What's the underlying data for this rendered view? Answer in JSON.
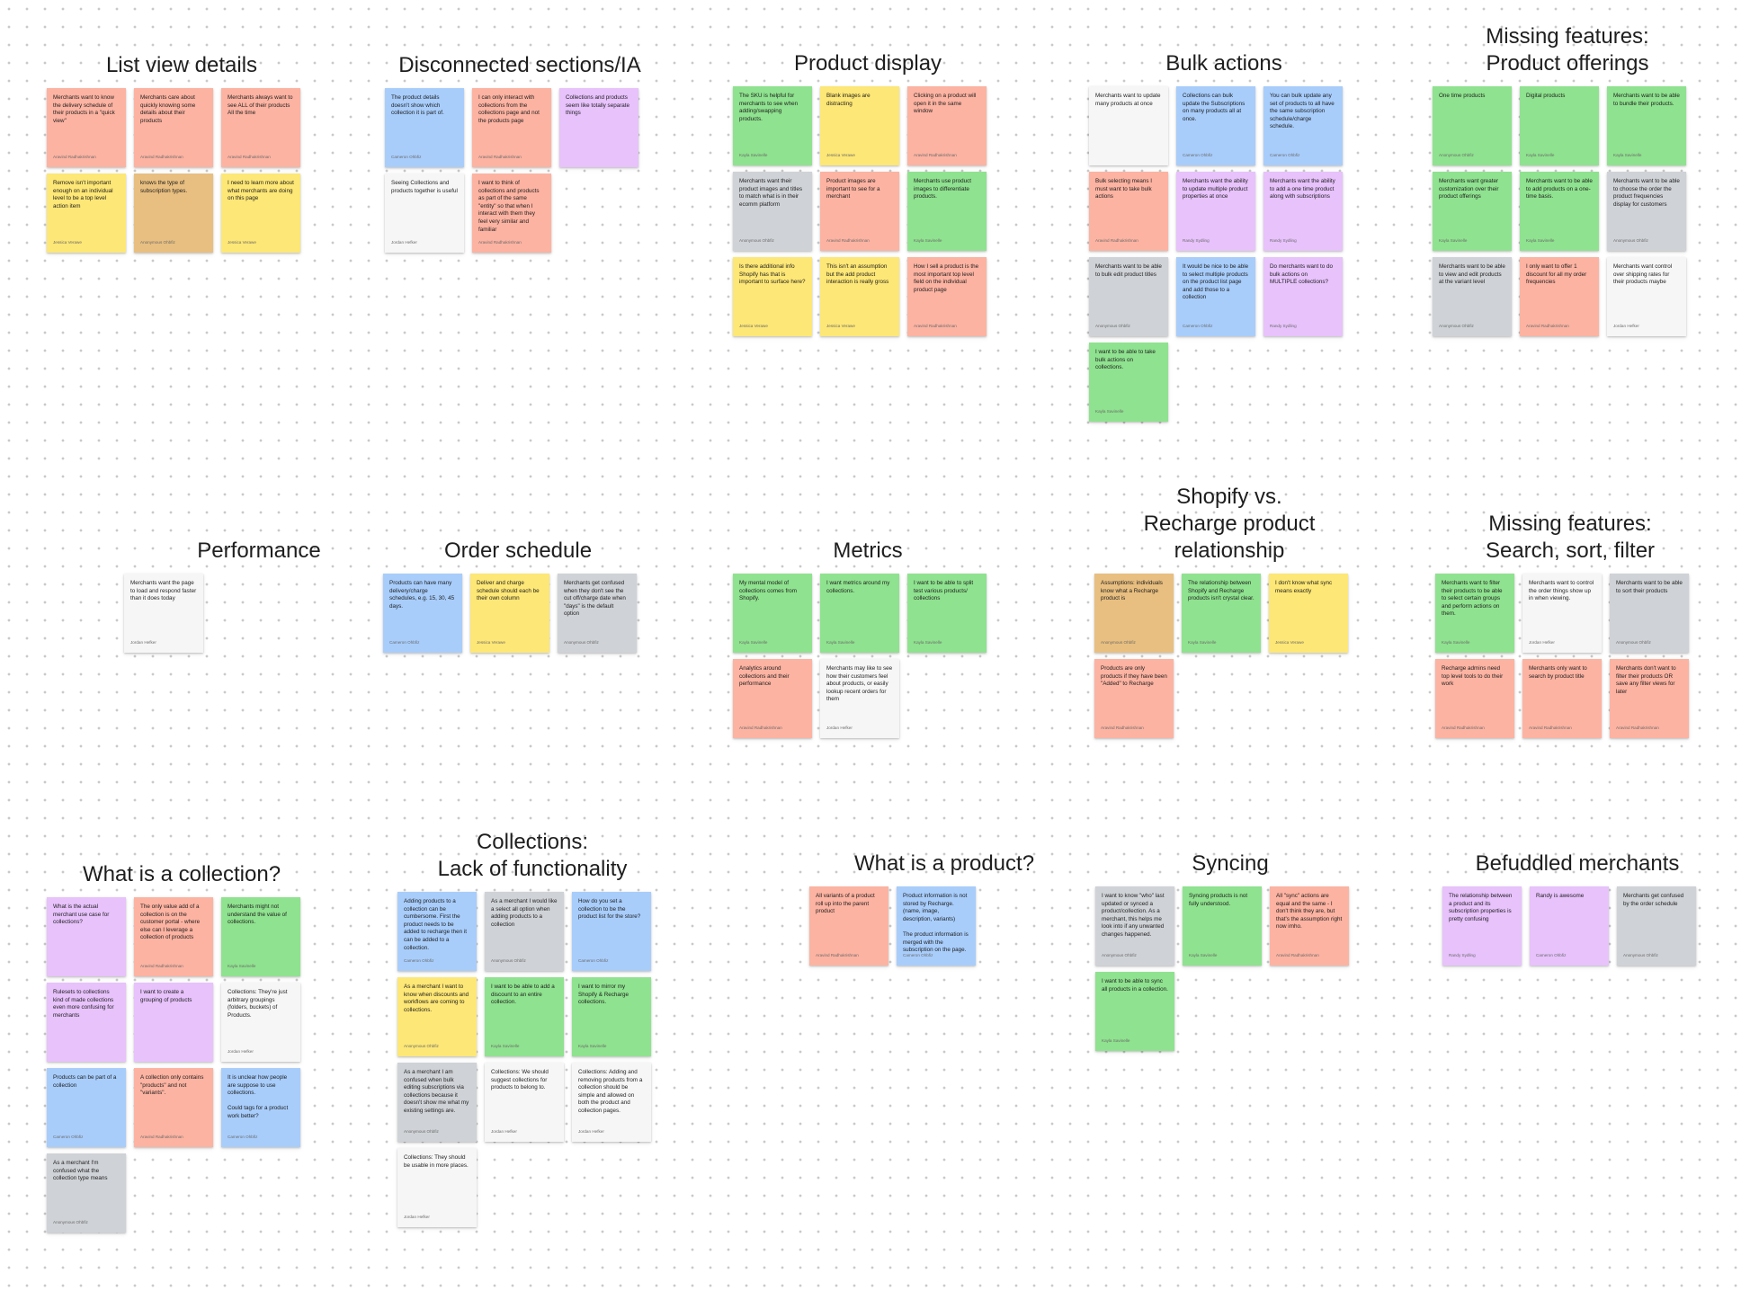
{
  "board": {
    "colors": {
      "red": "#fcb3a2",
      "yellow": "#fde776",
      "blue": "#a8cdfb",
      "green": "#8fe28f",
      "purple": "#e7c2fb",
      "gray": "#cfd2d6",
      "white": "#f6f6f6",
      "tan": "#e8bf80"
    },
    "clusters": [
      {
        "title": "List view details",
        "notes": [
          {
            "text": "Merchants want to know the delivery schedule of their products in a \"quick view\"",
            "author": "Aravind Radhakrishnan",
            "color": "red"
          },
          {
            "text": "Merchants care about quickly knowing some details about their products",
            "author": "Aravind Radhakrishnan",
            "color": "red"
          },
          {
            "text": "Merchants always want to see ALL of their products All the time",
            "author": "Aravind Radhakrishnan",
            "color": "red"
          },
          {
            "text": "Remove isn't important enough on an individual level to be a top level action item",
            "author": "Jessica Verawe",
            "color": "yellow"
          },
          {
            "text": "knows the type of subscription types.",
            "author": "Anonymous Ohbfiz",
            "color": "tan"
          },
          {
            "text": "I need to learn more about what merchants are doing on this page",
            "author": "Jessica Verawe",
            "color": "yellow"
          }
        ]
      },
      {
        "title": "Disconnected sections/IA",
        "notes": [
          {
            "text": "The product details doesn't show which collection it is part of.",
            "author": "Cameron Ohbfiz",
            "color": "blue"
          },
          {
            "text": "I can only interact with collections from the collections page and not the products page",
            "author": "Aravind Radhakrishnan",
            "color": "red"
          },
          {
            "text": "Collections and products seem like totally separate things",
            "author": "",
            "color": "purple"
          },
          {
            "text": "Seeing Collections and products together is useful",
            "author": "Jordan Hefker",
            "color": "white"
          },
          {
            "text": "I want to think of collections and products as part of the same \"entity\" so that when I interact with them they feel very similar and familiar",
            "author": "Aravind Radhakrishnan",
            "color": "red"
          }
        ]
      },
      {
        "title": "Product display",
        "notes": [
          {
            "text": "The SKU is helpful for merchants to see when adding/swapping products.",
            "author": "Kayla Savinelle",
            "color": "green"
          },
          {
            "text": "Blank images are distracting",
            "author": "Jessica Verawe",
            "color": "yellow"
          },
          {
            "text": "Clicking on a product will open it in the same window",
            "author": "Aravind Radhakrishnan",
            "color": "red"
          },
          {
            "text": "Merchants want their product images and titles to match what is in their ecomm platform",
            "author": "Anonymous Ohbfiz",
            "color": "gray"
          },
          {
            "text": "Product images are important to see for a merchant",
            "author": "Aravind Radhakrishnan",
            "color": "red"
          },
          {
            "text": "Merchants use product images to differentiate products.",
            "author": "Kayla Savinelle",
            "color": "green"
          },
          {
            "text": "Is there additional info Shopify has that is important to surface here?",
            "author": "Jessica Verawe",
            "color": "yellow"
          },
          {
            "text": "This isn't an assumption but the add product interaction is really gross",
            "author": "Jessica Verawe",
            "color": "yellow"
          },
          {
            "text": "How I sell a product is the most important top level field on the individual product page",
            "author": "Aravind Radhakrishnan",
            "color": "red"
          }
        ]
      },
      {
        "title": "Bulk actions",
        "notes": [
          {
            "text": "Merchants want to update many products at once",
            "author": "",
            "color": "white"
          },
          {
            "text": "Collections can bulk update the Subscriptions on many products all at once.",
            "author": "Cameron Ohbfiz",
            "color": "blue"
          },
          {
            "text": "You can bulk update any set of products to all have the same subscription schedule/charge schedule.",
            "author": "Cameron Ohbfiz",
            "color": "blue"
          },
          {
            "text": "Bulk selecting means I must want to take bulk actions",
            "author": "Aravind Radhakrishnan",
            "color": "red"
          },
          {
            "text": "Merchants want the ability to update multiple product properties at once",
            "author": "Randy Sydling",
            "color": "purple"
          },
          {
            "text": "Merchants want the ability to add a one time product along with subscriptions",
            "author": "Randy Sydling",
            "color": "purple"
          },
          {
            "text": "Merchants want to be able to bulk edit product titles",
            "author": "Anonymous Ohbfiz",
            "color": "gray"
          },
          {
            "text": "It would be nice to be able to select multiple products on the product list page and add those to a collection",
            "author": "Cameron Ohbfiz",
            "color": "blue"
          },
          {
            "text": "Do merchants want to do bulk actions on MULTIPLE collections?",
            "author": "Randy Sydling",
            "color": "purple"
          },
          {
            "text": "I want to be able to take bulk actions on collections.",
            "author": "Kayla Savinelle",
            "color": "green"
          }
        ]
      },
      {
        "title": "Missing features:\nProduct offerings",
        "notes": [
          {
            "text": "One time products",
            "author": "Anonymous Ohbfiz",
            "color": "green"
          },
          {
            "text": "Digital products",
            "author": "Kayla Savinelle",
            "color": "green"
          },
          {
            "text": "Merchants want to be able to bundle their products.",
            "author": "Kayla Savinelle",
            "color": "green"
          },
          {
            "text": "Merchants want greater customization over their product offerings",
            "author": "Kayla Savinelle",
            "color": "green"
          },
          {
            "text": "Merchants want to be able to add products on a one-time basis.",
            "author": "Kayla Savinelle",
            "color": "green"
          },
          {
            "text": "Merchants want to be able to choose the order the product frequencies display for customers",
            "author": "Anonymous Ohbfiz",
            "color": "gray"
          },
          {
            "text": "Merchants want to be able to view and edit products at the variant level",
            "author": "Anonymous Ohbfiz",
            "color": "gray"
          },
          {
            "text": "I only want to offer 1 discount for all my order frequencies",
            "author": "Aravind Radhakrishnan",
            "color": "red"
          },
          {
            "text": "Merchants want control over shipping rates for their products maybe",
            "author": "Jordan Hefker",
            "color": "white"
          }
        ]
      },
      {
        "title": "Performance",
        "notes": [
          {
            "text": "Merchants want the page to load and respond faster than it does today",
            "author": "Jordan Hefker",
            "color": "white"
          }
        ]
      },
      {
        "title": "Order schedule",
        "notes": [
          {
            "text": "Products can have many delivery/charge schedules, e.g. 15, 30, 45 days.",
            "author": "Cameron Ohbfiz",
            "color": "blue"
          },
          {
            "text": "Deliver and charge schedule should each be their own column",
            "author": "Jessica Verawe",
            "color": "yellow"
          },
          {
            "text": "Merchants get confused when they don't see the cut off/charge date when \"days\" is the default option",
            "author": "Anonymous Ohbfiz",
            "color": "gray"
          }
        ]
      },
      {
        "title": "Metrics",
        "notes": [
          {
            "text": "My mental model of collections comes from Shopify.",
            "author": "Kayla Savinelle",
            "color": "green"
          },
          {
            "text": "I want metrics around my collections.",
            "author": "Kayla Savinelle",
            "color": "green"
          },
          {
            "text": "I want to be able to split test various products/ collections",
            "author": "Kayla Savinelle",
            "color": "green"
          },
          {
            "text": "Analytics around collections and their performance",
            "author": "Aravind Radhakrishnan",
            "color": "red"
          },
          {
            "text": "Merchants may like to see how their customers feel about products, or easily lookup recent orders for them",
            "author": "Jordan Hefker",
            "color": "white"
          }
        ]
      },
      {
        "title": "Shopify vs.\nRecharge product\nrelationship",
        "notes": [
          {
            "text": "Assumptions: individuals know what a Recharge product is",
            "author": "Anonymous Ohbfiz",
            "color": "tan"
          },
          {
            "text": "The relationship between Shopify and Recharge products isn't crystal clear.",
            "author": "Kayla Savinelle",
            "color": "green"
          },
          {
            "text": "I don't know what sync means exactly",
            "author": "Jessica Verawe",
            "color": "yellow"
          },
          {
            "text": "Products are only products if they have been \"Added\" to Recharge",
            "author": "Aravind Radhakrishnan",
            "color": "red"
          }
        ]
      },
      {
        "title": "Missing features:\nSearch, sort, filter",
        "notes": [
          {
            "text": "Merchants want to filter their products to be able to select certain groups and perform actions on them.",
            "author": "Kayla Savinelle",
            "color": "green"
          },
          {
            "text": "Merchants want to control the order things show up in when viewing.",
            "author": "Jordan Hefker",
            "color": "white"
          },
          {
            "text": "Merchants want to be able to sort their products",
            "author": "Anonymous Ohbfiz",
            "color": "gray"
          },
          {
            "text": "Recharge admins need top level tools to do their work",
            "author": "Aravind Radhakrishnan",
            "color": "red"
          },
          {
            "text": "Merchants only want to search by product title",
            "author": "Aravind Radhakrishnan",
            "color": "red"
          },
          {
            "text": "Merchants don't want to filter their products OR save any filter views for later",
            "author": "Aravind Radhakrishnan",
            "color": "red"
          }
        ]
      },
      {
        "title": "What is a collection?",
        "notes": [
          {
            "text": "What is the actual merchant use case for collections?",
            "author": "",
            "color": "purple"
          },
          {
            "text": "The only value add of a collection is on the customer portal - where else can I leverage a collection of products",
            "author": "Aravind Radhakrishnan",
            "color": "red"
          },
          {
            "text": "Merchants might not understand the value of collections.",
            "author": "Kayla Savinelle",
            "color": "green"
          },
          {
            "text": "Rulesets to collections kind of made collections even more confusing for merchants",
            "author": "",
            "color": "purple"
          },
          {
            "text": "I want to create a grouping of products",
            "author": "",
            "color": "purple"
          },
          {
            "text": "Collections: They're just arbitrary groupings (folders, buckets) of Products.",
            "author": "Jordan Hefker",
            "color": "white"
          },
          {
            "text": "Products can be part of a collection",
            "author": "Cameron Ohbfiz",
            "color": "blue"
          },
          {
            "text": "A collection only contains \"products\" and not \"variants\".",
            "author": "Aravind Radhakrishnan",
            "color": "red"
          },
          {
            "text": "It is unclear how people are suppose to use collections.\n\nCould tags for a product work better?",
            "author": "Cameron Ohbfiz",
            "color": "blue"
          },
          {
            "text": "As a merchant I'm confused what the collection type means",
            "author": "Anonymous Ohbfiz",
            "color": "gray"
          }
        ]
      },
      {
        "title": "Collections:\nLack of functionality",
        "notes": [
          {
            "text": "Adding products to a collection can be cumbersome. First the product needs to be added to recharge then it can be added to a collection.",
            "author": "Cameron Ohbfiz",
            "color": "blue"
          },
          {
            "text": "As a merchant I would like a select all option when adding products to a collection",
            "author": "Anonymous Ohbfiz",
            "color": "gray"
          },
          {
            "text": "How do you set a collection to be the product list for the store?",
            "author": "Cameron Ohbfiz",
            "color": "blue"
          },
          {
            "text": "As a merchant I want to know when discounts and workflows are coming to collections.",
            "author": "Anonymous Ohbfiz",
            "color": "yellow"
          },
          {
            "text": "I want to be able to add a discount to an entire collection.",
            "author": "Kayla Savinelle",
            "color": "green"
          },
          {
            "text": "I want to mirror my Shopify & Recharge collections.",
            "author": "Kayla Savinelle",
            "color": "green"
          },
          {
            "text": "As a merchant I am confused when bulk editing subscriptions via collections because it doesn't show me what my existing settings are.",
            "author": "Anonymous Ohbfiz",
            "color": "gray"
          },
          {
            "text": "Collections: We should suggest collections for products to belong to.",
            "author": "Jordan Hefker",
            "color": "white"
          },
          {
            "text": "Collections: Adding and removing products from a collection should be simple and allowed on both the product and collection pages.",
            "author": "Jordan Hefker",
            "color": "white"
          },
          {
            "text": "Collections: They should be usable in more places.",
            "author": "Jordan Hefker",
            "color": "white"
          }
        ]
      },
      {
        "title": "What is a product?",
        "notes": [
          {
            "text": "All variants of a product roll up into the parent product",
            "author": "Aravind Radhakrishnan",
            "color": "red"
          },
          {
            "text": "Product information is not stored by Recharge. (name, image, description, variants)\n\nThe product information is merged with the subscription on the page.",
            "author": "Cameron Ohbfiz",
            "color": "blue"
          }
        ]
      },
      {
        "title": "Syncing",
        "notes": [
          {
            "text": "I want to know \"who\" last updated or synced a product/collection. As a merchant, this helps me look into if any unwanted changes happened.",
            "author": "Anonymous Ohbfiz",
            "color": "gray"
          },
          {
            "text": "Syncing products is not fully understood.",
            "author": "Kayla Savinelle",
            "color": "green"
          },
          {
            "text": "All \"sync\" actions are equal and the same - I don't think they are, but that's the assumption right now imho.",
            "author": "Aravind Radhakrishnan",
            "color": "red"
          },
          {
            "text": "I want to be able to sync all products in a collection.",
            "author": "Kayla Savinelle",
            "color": "green"
          }
        ]
      },
      {
        "title": "Befuddled merchants",
        "notes": [
          {
            "text": "The relationship between a product and its subscription properties is pretty confusing",
            "author": "Randy Sydling",
            "color": "purple"
          },
          {
            "text": "Randy is awesome",
            "author": "Cameron Ohbfiz",
            "color": "purple"
          },
          {
            "text": "Merchants get confused by the order schedule",
            "author": "Anonymous Ohbfiz",
            "color": "gray"
          }
        ]
      }
    ]
  }
}
